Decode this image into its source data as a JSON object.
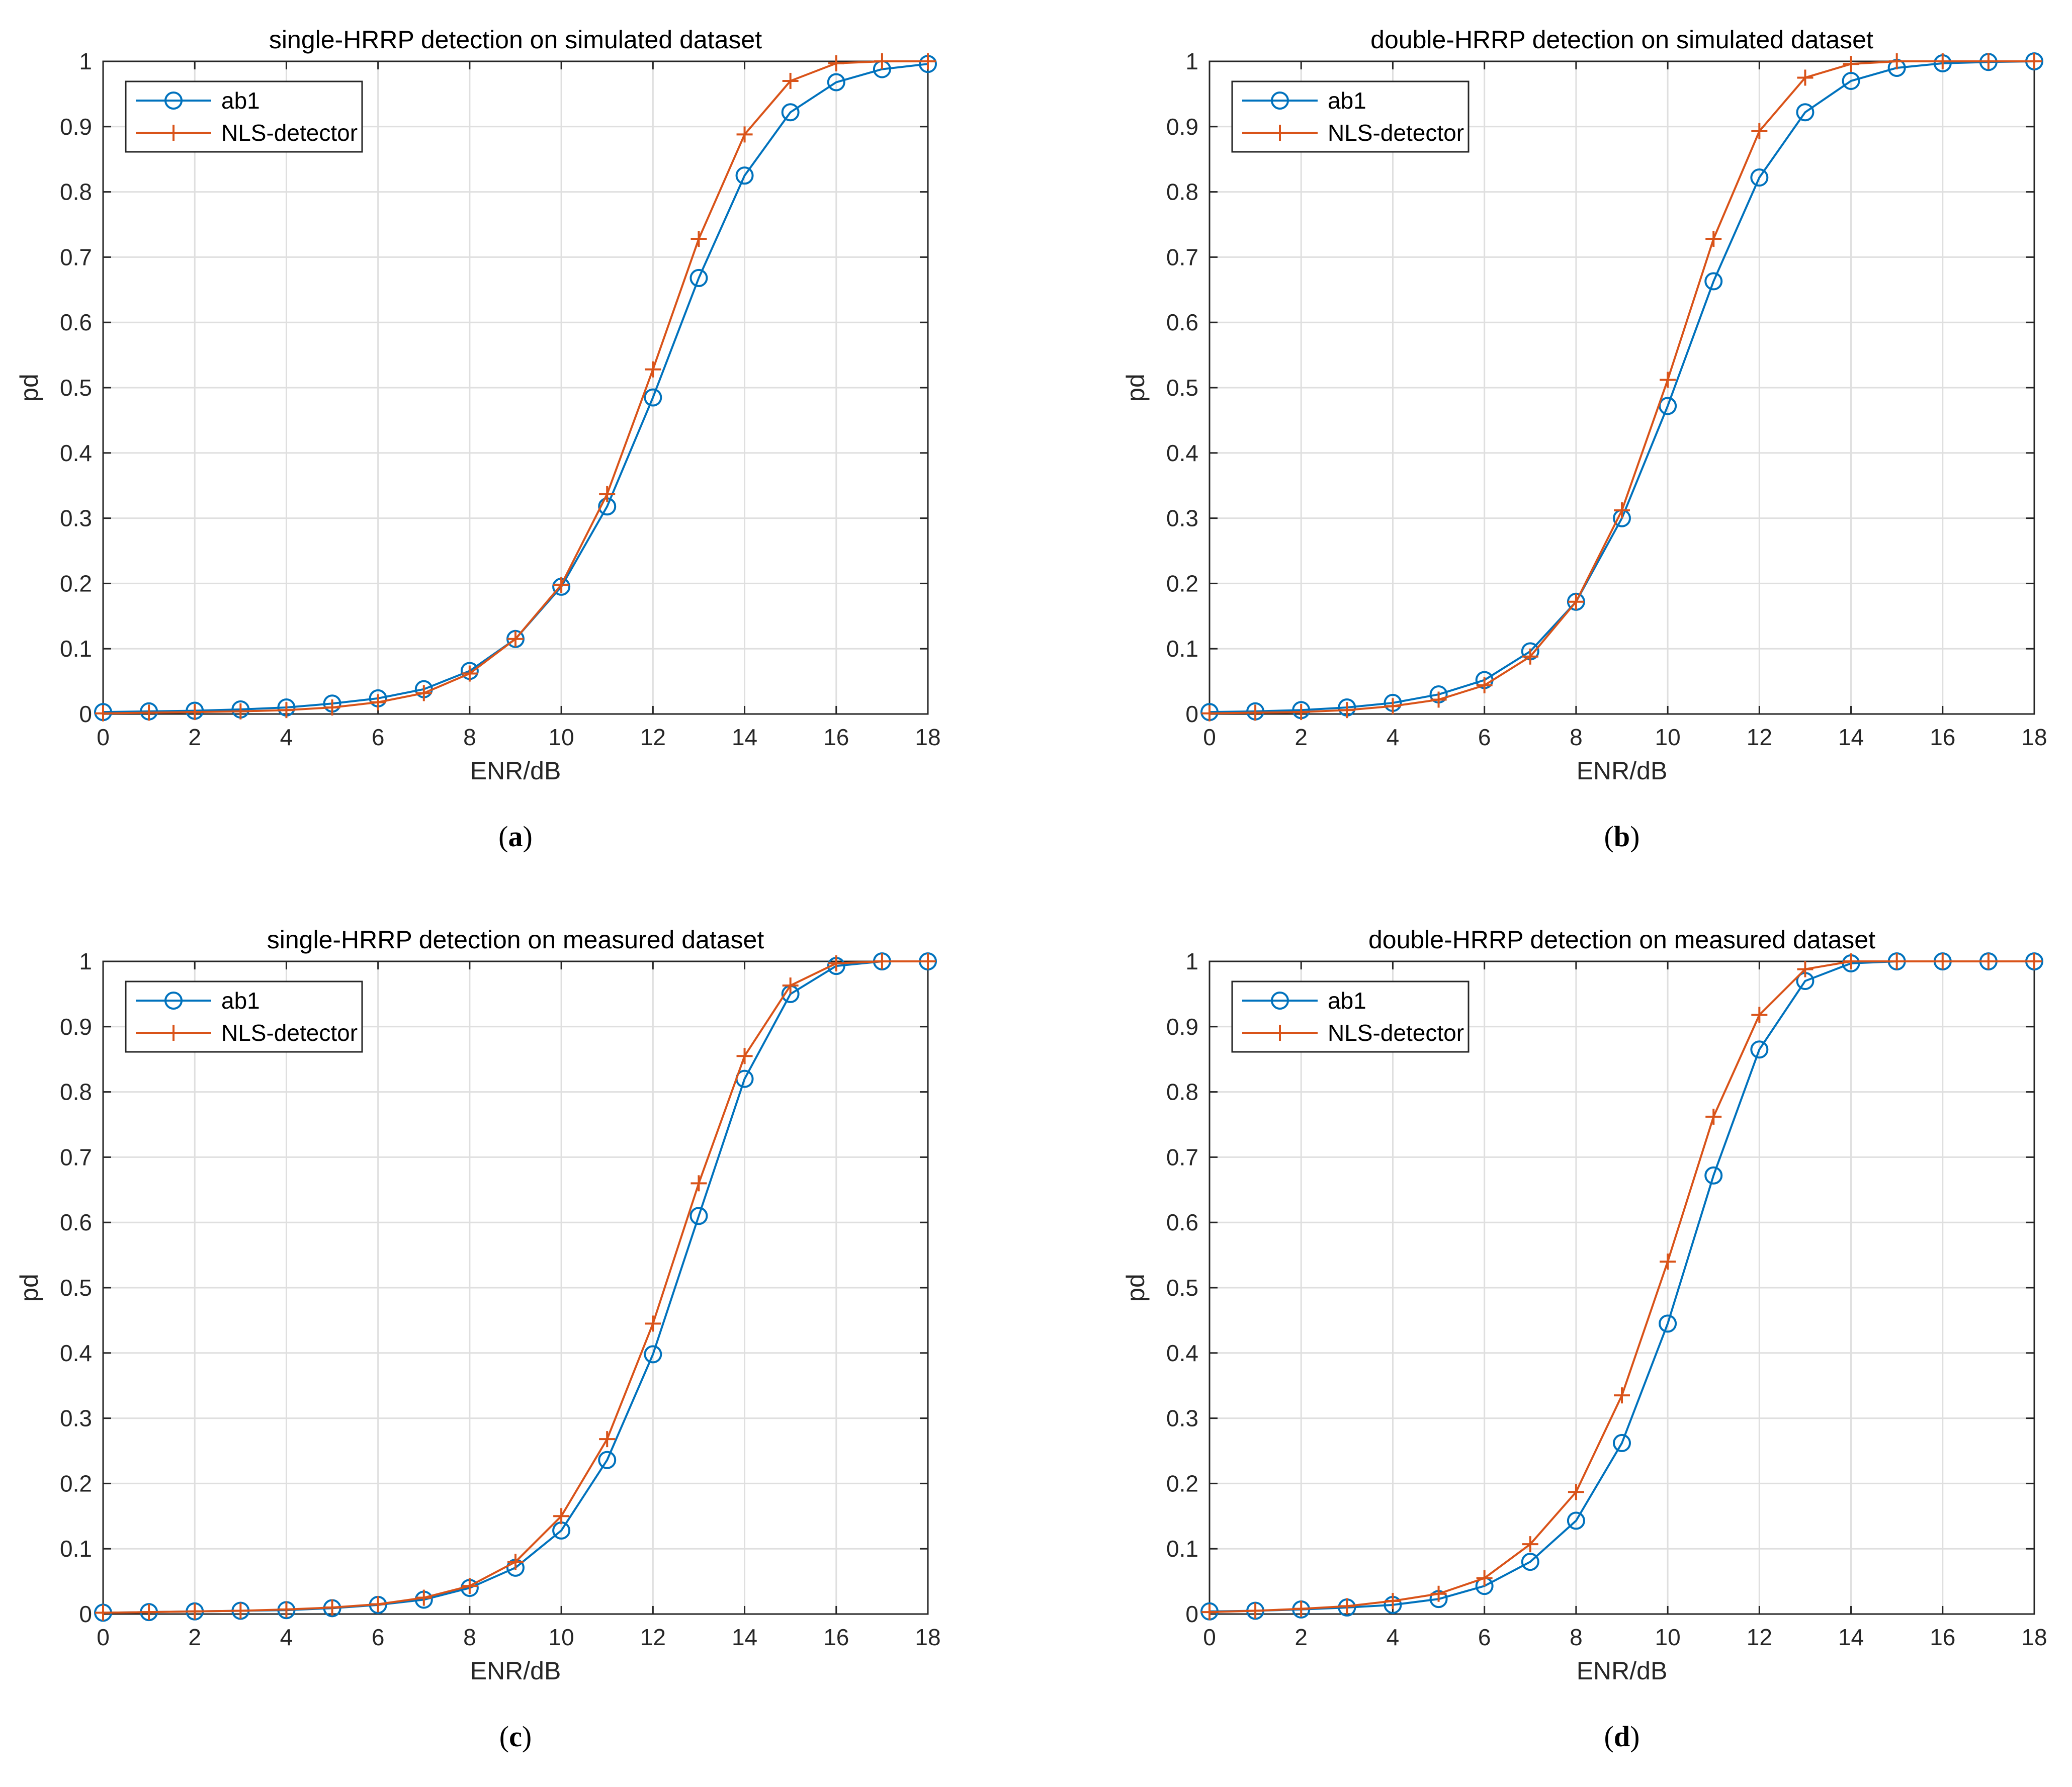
{
  "chart_data": [
    {
      "type": "line",
      "caption": "a",
      "title": "single-HRRP detection on simulated dataset",
      "xlabel": "ENR/dB",
      "ylabel": "pd",
      "xlim": [
        0,
        18
      ],
      "ylim": [
        0,
        1
      ],
      "xticks": [
        "0",
        "2",
        "4",
        "6",
        "8",
        "10",
        "12",
        "14",
        "16",
        "18"
      ],
      "yticks": [
        "0",
        "0.1",
        "0.2",
        "0.3",
        "0.4",
        "0.5",
        "0.6",
        "0.7",
        "0.8",
        "0.9",
        "1"
      ],
      "grid": true,
      "legend_position": "top-left",
      "x": [
        0,
        1,
        2,
        3,
        4,
        5,
        6,
        7,
        8,
        9,
        10,
        11,
        12,
        13,
        14,
        15,
        16,
        17,
        18
      ],
      "series": [
        {
          "name": "ab1",
          "marker": "circle",
          "color": "#0072BD",
          "values": [
            0.003,
            0.004,
            0.005,
            0.007,
            0.01,
            0.016,
            0.024,
            0.038,
            0.066,
            0.115,
            0.195,
            0.318,
            0.485,
            0.668,
            0.825,
            0.922,
            0.968,
            0.988,
            0.996
          ]
        },
        {
          "name": "NLS-detector",
          "marker": "plus",
          "color": "#D95319",
          "values": [
            0.001,
            0.002,
            0.003,
            0.004,
            0.006,
            0.01,
            0.018,
            0.032,
            0.062,
            0.115,
            0.198,
            0.337,
            0.528,
            0.728,
            0.888,
            0.97,
            0.997,
            1.0,
            1.0
          ]
        }
      ]
    },
    {
      "type": "line",
      "caption": "b",
      "title": "double-HRRP detection on simulated dataset",
      "xlabel": "ENR/dB",
      "ylabel": "pd",
      "xlim": [
        0,
        18
      ],
      "ylim": [
        0,
        1
      ],
      "xticks": [
        "0",
        "2",
        "4",
        "6",
        "8",
        "10",
        "12",
        "14",
        "16",
        "18"
      ],
      "yticks": [
        "0",
        "0.1",
        "0.2",
        "0.3",
        "0.4",
        "0.5",
        "0.6",
        "0.7",
        "0.8",
        "0.9",
        "1"
      ],
      "grid": true,
      "legend_position": "top-left",
      "x": [
        0,
        1,
        2,
        3,
        4,
        5,
        6,
        7,
        8,
        9,
        10,
        11,
        12,
        13,
        14,
        15,
        16,
        17,
        18
      ],
      "series": [
        {
          "name": "ab1",
          "marker": "circle",
          "color": "#0072BD",
          "values": [
            0.003,
            0.004,
            0.006,
            0.01,
            0.017,
            0.03,
            0.052,
            0.096,
            0.172,
            0.3,
            0.472,
            0.663,
            0.822,
            0.922,
            0.97,
            0.99,
            0.997,
            0.999,
            1.0
          ]
        },
        {
          "name": "NLS-detector",
          "marker": "plus",
          "color": "#D95319",
          "values": [
            0.001,
            0.002,
            0.003,
            0.006,
            0.012,
            0.022,
            0.044,
            0.088,
            0.172,
            0.312,
            0.512,
            0.728,
            0.893,
            0.975,
            0.996,
            1.0,
            1.0,
            1.0,
            1.0
          ]
        }
      ]
    },
    {
      "type": "line",
      "caption": "c",
      "title": "single-HRRP detection on measured dataset",
      "xlabel": "ENR/dB",
      "ylabel": "pd",
      "xlim": [
        0,
        18
      ],
      "ylim": [
        0,
        1
      ],
      "xticks": [
        "0",
        "2",
        "4",
        "6",
        "8",
        "10",
        "12",
        "14",
        "16",
        "18"
      ],
      "yticks": [
        "0",
        "0.1",
        "0.2",
        "0.3",
        "0.4",
        "0.5",
        "0.6",
        "0.7",
        "0.8",
        "0.9",
        "1"
      ],
      "grid": true,
      "legend_position": "top-left",
      "x": [
        0,
        1,
        2,
        3,
        4,
        5,
        6,
        7,
        8,
        9,
        10,
        11,
        12,
        13,
        14,
        15,
        16,
        17,
        18
      ],
      "series": [
        {
          "name": "ab1",
          "marker": "circle",
          "color": "#0072BD",
          "values": [
            0.002,
            0.003,
            0.004,
            0.005,
            0.006,
            0.009,
            0.014,
            0.022,
            0.04,
            0.071,
            0.128,
            0.236,
            0.398,
            0.61,
            0.82,
            0.95,
            0.993,
            1.0,
            1.0
          ]
        },
        {
          "name": "NLS-detector",
          "marker": "plus",
          "color": "#D95319",
          "values": [
            0.002,
            0.003,
            0.004,
            0.005,
            0.007,
            0.01,
            0.015,
            0.025,
            0.043,
            0.08,
            0.15,
            0.268,
            0.445,
            0.66,
            0.855,
            0.963,
            0.997,
            1.0,
            1.0
          ]
        }
      ]
    },
    {
      "type": "line",
      "caption": "d",
      "title": "double-HRRP detection on measured dataset",
      "xlabel": "ENR/dB",
      "ylabel": "pd",
      "xlim": [
        0,
        18
      ],
      "ylim": [
        0,
        1
      ],
      "xticks": [
        "0",
        "2",
        "4",
        "6",
        "8",
        "10",
        "12",
        "14",
        "16",
        "18"
      ],
      "yticks": [
        "0",
        "0.1",
        "0.2",
        "0.3",
        "0.4",
        "0.5",
        "0.6",
        "0.7",
        "0.8",
        "0.9",
        "1"
      ],
      "grid": true,
      "legend_position": "top-left",
      "x": [
        0,
        1,
        2,
        3,
        4,
        5,
        6,
        7,
        8,
        9,
        10,
        11,
        12,
        13,
        14,
        15,
        16,
        17,
        18
      ],
      "series": [
        {
          "name": "ab1",
          "marker": "circle",
          "color": "#0072BD",
          "values": [
            0.004,
            0.005,
            0.007,
            0.01,
            0.014,
            0.023,
            0.043,
            0.08,
            0.143,
            0.262,
            0.445,
            0.672,
            0.865,
            0.97,
            0.997,
            1.0,
            1.0,
            1.0,
            1.0
          ]
        },
        {
          "name": "NLS-detector",
          "marker": "plus",
          "color": "#D95319",
          "values": [
            0.003,
            0.005,
            0.008,
            0.012,
            0.02,
            0.031,
            0.055,
            0.107,
            0.187,
            0.335,
            0.54,
            0.762,
            0.918,
            0.988,
            1.0,
            1.0,
            1.0,
            1.0,
            1.0
          ]
        }
      ]
    }
  ]
}
